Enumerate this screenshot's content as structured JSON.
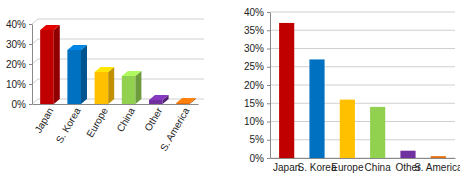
{
  "chart_data": [
    {
      "type": "bar",
      "categories": [
        "Japan",
        "S. Korea",
        "Europe",
        "China",
        "Other",
        "S. America"
      ],
      "values": [
        37,
        27,
        16,
        14,
        2,
        0.5
      ],
      "colors": [
        "#c00000",
        "#0070c0",
        "#ffc000",
        "#92d050",
        "#7030a0",
        "#e46c0a"
      ],
      "ylim": [
        0,
        40
      ],
      "yticks": [
        {
          "value": 0,
          "label": "0%"
        },
        {
          "value": 10,
          "label": "10%"
        },
        {
          "value": 20,
          "label": "20%"
        },
        {
          "value": 30,
          "label": "30%"
        },
        {
          "value": 40,
          "label": "40%"
        }
      ],
      "grid": true
    },
    {
      "type": "bar",
      "categories": [
        "Japan",
        "S. Korea",
        "Europe",
        "China",
        "Other",
        "S. America"
      ],
      "values": [
        37,
        27,
        16,
        14,
        2,
        0.5
      ],
      "colors": [
        "#c00000",
        "#0070c0",
        "#ffc000",
        "#92d050",
        "#7030a0",
        "#e46c0a"
      ],
      "ylim": [
        0,
        40
      ],
      "yticks": [
        {
          "value": 0,
          "label": "0%"
        },
        {
          "value": 5,
          "label": "5%"
        },
        {
          "value": 10,
          "label": "10%"
        },
        {
          "value": 15,
          "label": "15%"
        },
        {
          "value": 20,
          "label": "20%"
        },
        {
          "value": 25,
          "label": "25%"
        },
        {
          "value": 30,
          "label": "30%"
        },
        {
          "value": 35,
          "label": "35%"
        },
        {
          "value": 40,
          "label": "40%"
        }
      ],
      "grid": true
    }
  ]
}
